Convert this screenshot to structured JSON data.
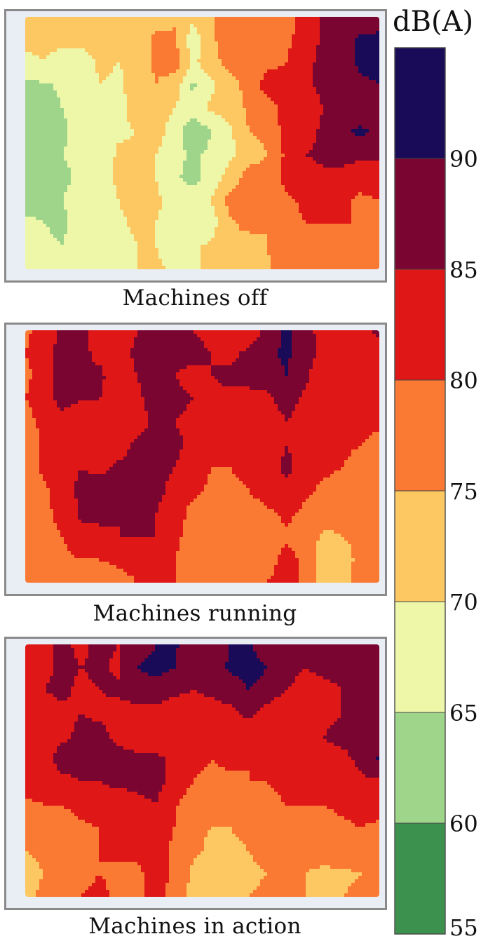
{
  "colorbar": {
    "label": "dB(A)",
    "ticks": [
      "55",
      "60",
      "65",
      "70",
      "75",
      "80",
      "85",
      "90"
    ],
    "bands": [
      {
        "from": 55,
        "to": 60,
        "color": "#3c914f"
      },
      {
        "from": 60,
        "to": 65,
        "color": "#9fd58a"
      },
      {
        "from": 65,
        "to": 70,
        "color": "#eef7a8"
      },
      {
        "from": 70,
        "to": 75,
        "color": "#fdc762"
      },
      {
        "from": 75,
        "to": 80,
        "color": "#fb7a33"
      },
      {
        "from": 80,
        "to": 85,
        "color": "#df1717"
      },
      {
        "from": 85,
        "to": 90,
        "color": "#7a0530"
      },
      {
        "from": 90,
        "to": 95,
        "color": "#190b58"
      }
    ]
  },
  "chart_data": [
    {
      "type": "heatmap",
      "title": "Machines off",
      "zlabel": "dB(A)",
      "zlim": [
        55,
        95
      ],
      "grid": [
        [
          71,
          71,
          71,
          72,
          73,
          72,
          71,
          73,
          74,
          71,
          74,
          78,
          76,
          79,
          78,
          82,
          86,
          87,
          87,
          88
        ],
        [
          71,
          71,
          72,
          72,
          73,
          73,
          72,
          76,
          76,
          67,
          74,
          78,
          77,
          80,
          79,
          82,
          86,
          87,
          91,
          91
        ],
        [
          69,
          70,
          67,
          66,
          71,
          70,
          71,
          76,
          78,
          69,
          73,
          77,
          77,
          79,
          80,
          84,
          86,
          87,
          91,
          91
        ],
        [
          64,
          64,
          66,
          68,
          70,
          69,
          72,
          75,
          72,
          64,
          69,
          73,
          77,
          82,
          81,
          84,
          86,
          88,
          89,
          90
        ],
        [
          62,
          62,
          65,
          67,
          68,
          68,
          73,
          72,
          70,
          68,
          71,
          72,
          76,
          78,
          82,
          83,
          85,
          87,
          86,
          87
        ],
        [
          61,
          61,
          64,
          68,
          68,
          69,
          70,
          72,
          68,
          61,
          65,
          69,
          75,
          76,
          82,
          83,
          86,
          89,
          91,
          89
        ],
        [
          62,
          62,
          65,
          66,
          66,
          71,
          71,
          70,
          67,
          64,
          66,
          69,
          73,
          75,
          81,
          85,
          86,
          87,
          86,
          86
        ],
        [
          62,
          63,
          64,
          66,
          68,
          71,
          73,
          70,
          66,
          63,
          67,
          72,
          77,
          76,
          82,
          83,
          84,
          83,
          82,
          83
        ],
        [
          63,
          64,
          65,
          67,
          67,
          70,
          72,
          71,
          68,
          68,
          70,
          77,
          78,
          76,
          79,
          81,
          81,
          81,
          79,
          80
        ],
        [
          66,
          65,
          64,
          67,
          67,
          69,
          71,
          70,
          68,
          67,
          68,
          74,
          77,
          75,
          78,
          80,
          80,
          80,
          80,
          78
        ],
        [
          68,
          66,
          65,
          68,
          68,
          68,
          70,
          70,
          68,
          69,
          71,
          74,
          72,
          75,
          79,
          80,
          79,
          79,
          80,
          78
        ],
        [
          69,
          67,
          67,
          69,
          68,
          69,
          70,
          71,
          69,
          69,
          71,
          72,
          71,
          74,
          79,
          80,
          78,
          80,
          80,
          79
        ]
      ]
    },
    {
      "type": "heatmap",
      "title": "Machines running",
      "zlabel": "dB(A)",
      "zlim": [
        55,
        95
      ],
      "grid": [
        [
          79,
          82,
          86,
          86,
          83,
          81,
          85,
          87,
          86,
          85,
          84,
          81,
          82,
          86,
          91,
          86,
          84,
          81,
          83,
          87
        ],
        [
          80,
          83,
          87,
          86,
          84,
          83,
          86,
          87,
          86,
          86,
          85,
          84,
          86,
          89,
          91,
          87,
          84,
          82,
          82,
          81
        ],
        [
          78,
          84,
          86,
          85,
          86,
          82,
          85,
          87,
          85,
          84,
          85,
          86,
          86,
          87,
          90,
          86,
          82,
          82,
          82,
          83
        ],
        [
          80,
          84,
          86,
          85,
          85,
          82,
          84,
          87,
          86,
          85,
          84,
          84,
          84,
          84,
          87,
          84,
          81,
          80,
          81,
          81
        ],
        [
          77,
          82,
          84,
          83,
          83,
          81,
          83,
          86,
          85,
          84,
          83,
          82,
          82,
          82,
          85,
          83,
          80,
          80,
          82,
          81
        ],
        [
          76,
          81,
          82,
          83,
          83,
          83,
          86,
          87,
          86,
          84,
          82,
          81,
          81,
          82,
          85,
          84,
          80,
          81,
          80,
          78
        ],
        [
          77,
          81,
          84,
          85,
          84,
          86,
          86,
          86,
          85,
          83,
          80,
          80,
          81,
          83,
          86,
          83,
          81,
          80,
          78,
          77
        ],
        [
          75,
          79,
          83,
          86,
          87,
          88,
          86,
          86,
          84,
          81,
          79,
          79,
          80,
          82,
          84,
          81,
          79,
          78,
          77,
          76
        ],
        [
          76,
          79,
          81,
          86,
          86,
          85,
          86,
          85,
          83,
          78,
          77,
          78,
          78,
          79,
          81,
          79,
          77,
          76,
          76,
          77
        ],
        [
          77,
          79,
          80,
          83,
          84,
          85,
          85,
          85,
          82,
          77,
          77,
          76,
          76,
          78,
          79,
          78,
          74,
          75,
          76,
          76
        ],
        [
          78,
          80,
          79,
          80,
          80,
          81,
          82,
          84,
          80,
          76,
          76,
          75,
          76,
          78,
          82,
          79,
          72,
          72,
          77,
          77
        ],
        [
          79,
          80,
          79,
          79,
          76,
          78,
          80,
          84,
          80,
          77,
          76,
          75,
          76,
          80,
          82,
          79,
          73,
          73,
          77,
          78
        ]
      ]
    },
    {
      "type": "heatmap",
      "title": "Machines in action",
      "zlabel": "dB(A)",
      "zlim": [
        55,
        95
      ],
      "grid": [
        [
          83,
          84,
          86,
          84,
          86,
          85,
          86,
          90,
          91,
          86,
          86,
          90,
          91,
          86,
          86,
          89,
          86,
          86,
          86,
          86
        ],
        [
          82,
          84,
          86,
          85,
          86,
          84,
          90,
          92,
          90,
          87,
          87,
          91,
          92,
          90,
          87,
          85,
          86,
          86,
          85,
          86
        ],
        [
          83,
          85,
          86,
          84,
          85,
          86,
          88,
          87,
          86,
          85,
          86,
          87,
          90,
          88,
          85,
          83,
          84,
          85,
          85,
          86
        ],
        [
          82,
          83,
          84,
          85,
          84,
          83,
          83,
          84,
          82,
          83,
          83,
          84,
          86,
          83,
          81,
          82,
          84,
          85,
          86,
          85
        ],
        [
          83,
          84,
          84,
          86,
          87,
          83,
          82,
          83,
          82,
          81,
          80,
          81,
          82,
          82,
          81,
          82,
          85,
          86,
          86,
          85
        ],
        [
          84,
          83,
          87,
          86,
          86,
          88,
          86,
          86,
          84,
          81,
          80,
          81,
          80,
          81,
          82,
          81,
          84,
          84,
          86,
          91
        ],
        [
          82,
          83,
          84,
          85,
          85,
          86,
          86,
          86,
          84,
          80,
          79,
          79,
          80,
          80,
          81,
          80,
          82,
          83,
          84,
          84
        ],
        [
          79,
          80,
          80,
          82,
          83,
          82,
          84,
          85,
          81,
          76,
          77,
          77,
          78,
          79,
          80,
          80,
          80,
          81,
          82,
          82
        ],
        [
          77,
          77,
          77,
          79,
          80,
          82,
          82,
          82,
          80,
          76,
          75,
          75,
          76,
          78,
          78,
          77,
          78,
          79,
          80,
          79
        ],
        [
          75,
          76,
          77,
          79,
          80,
          81,
          81,
          83,
          79,
          76,
          74,
          74,
          75,
          77,
          76,
          76,
          77,
          78,
          78,
          77
        ],
        [
          73,
          75,
          76,
          79,
          80,
          79,
          79,
          82,
          79,
          74,
          72,
          74,
          74,
          75,
          76,
          75,
          74,
          74,
          75,
          75
        ],
        [
          74,
          76,
          78,
          80,
          81,
          79,
          79,
          81,
          79,
          73,
          70,
          72,
          75,
          76,
          76,
          75,
          75,
          75,
          76,
          76
        ]
      ]
    }
  ]
}
